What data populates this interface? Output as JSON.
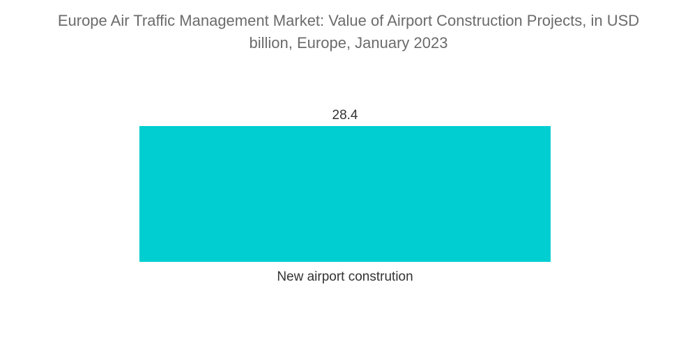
{
  "chart_data": {
    "type": "bar",
    "title_line1": "Europe Air Traffic Management Market: Value of Airport Construction Projects, in USD",
    "title_line2": "billion, Europe, January 2023",
    "categories": [
      "New airport constrution"
    ],
    "values": [
      28.4
    ],
    "value_labels": [
      "28.4"
    ],
    "xlabel": "",
    "ylabel": "",
    "ylim": [
      0,
      28.4
    ],
    "grid": false,
    "legend": "none",
    "bar_color": "#00CED1"
  }
}
